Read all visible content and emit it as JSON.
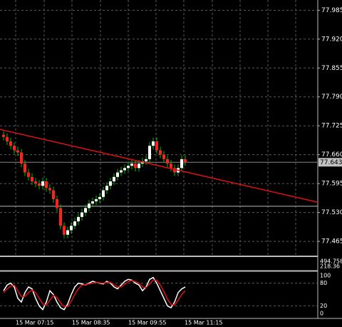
{
  "chart_data": {
    "type": "candlestick",
    "up_color": "#ffffff",
    "down_color": "#ff2020",
    "wick_color": "#00c000",
    "open": [
      77.705,
      77.7,
      77.69,
      77.68,
      77.67,
      77.665,
      77.64,
      77.62,
      77.61,
      77.6,
      77.595,
      77.59,
      77.6,
      77.585,
      77.58,
      77.56,
      77.54,
      77.5,
      77.48,
      77.49,
      77.5,
      77.51,
      77.52,
      77.53,
      77.54,
      77.55,
      77.555,
      77.56,
      77.565,
      77.58,
      77.59,
      77.6,
      77.61,
      77.62,
      77.625,
      77.63,
      77.635,
      77.64,
      77.63,
      77.64,
      77.645,
      77.65,
      77.68,
      77.69,
      77.67,
      77.66,
      77.65,
      77.64,
      77.63,
      77.62,
      77.63,
      77.65
    ],
    "high": [
      77.713,
      77.708,
      77.698,
      77.688,
      77.678,
      77.673,
      77.648,
      77.628,
      77.618,
      77.608,
      77.603,
      77.608,
      77.608,
      77.593,
      77.588,
      77.568,
      77.548,
      77.508,
      77.498,
      77.508,
      77.518,
      77.528,
      77.538,
      77.548,
      77.558,
      77.563,
      77.568,
      77.573,
      77.588,
      77.598,
      77.608,
      77.618,
      77.628,
      77.633,
      77.638,
      77.643,
      77.648,
      77.648,
      77.648,
      77.653,
      77.658,
      77.688,
      77.698,
      77.698,
      77.678,
      77.668,
      77.658,
      77.648,
      77.638,
      77.638,
      77.658,
      77.658
    ],
    "low": [
      77.692,
      77.682,
      77.672,
      77.662,
      77.657,
      77.632,
      77.612,
      77.602,
      77.592,
      77.587,
      77.582,
      77.582,
      77.577,
      77.572,
      77.552,
      77.532,
      77.492,
      77.472,
      77.472,
      77.482,
      77.492,
      77.502,
      77.512,
      77.522,
      77.532,
      77.542,
      77.547,
      77.552,
      77.557,
      77.572,
      77.582,
      77.592,
      77.602,
      77.612,
      77.617,
      77.622,
      77.627,
      77.622,
      77.622,
      77.632,
      77.637,
      77.642,
      77.672,
      77.662,
      77.652,
      77.642,
      77.632,
      77.622,
      77.612,
      77.612,
      77.622,
      77.635
    ],
    "close": [
      77.7,
      77.69,
      77.68,
      77.67,
      77.665,
      77.64,
      77.62,
      77.61,
      77.6,
      77.595,
      77.59,
      77.6,
      77.585,
      77.58,
      77.56,
      77.54,
      77.5,
      77.48,
      77.49,
      77.5,
      77.51,
      77.52,
      77.53,
      77.54,
      77.55,
      77.555,
      77.56,
      77.565,
      77.58,
      77.59,
      77.6,
      77.61,
      77.62,
      77.625,
      77.63,
      77.635,
      77.64,
      77.63,
      77.64,
      77.645,
      77.65,
      77.68,
      77.69,
      77.67,
      77.66,
      77.65,
      77.64,
      77.63,
      77.62,
      77.63,
      77.65,
      77.643
    ],
    "ylim": [
      77.433,
      78.008
    ],
    "yticks": [
      77.985,
      {
        "value": 77.92,
        "label": "77.920"
      },
      77.855,
      {
        "value": 77.79,
        "label": "77.790"
      },
      77.725,
      {
        "value": 77.66,
        "label": "77.660"
      },
      77.595,
      {
        "value": 77.53,
        "label": "77.530"
      },
      77.465
    ],
    "current_price": 77.643,
    "level_line": 77.544,
    "trendline": {
      "color": "#e01010",
      "values": [
        77.717,
        77.553
      ]
    },
    "x_labels": [
      "15 Mar 07:15",
      "15 Mar 08:35",
      "15 Mar 09:55",
      "15 Mar 11:15"
    ],
    "indicator_labels": [
      "494.758",
      "218.36"
    ],
    "oscillator": {
      "ylim": [
        0,
        100
      ],
      "yticks": [
        100,
        80,
        20,
        0
      ],
      "lines": [
        {
          "color": "#ffffff",
          "values": [
            60,
            75,
            80,
            70,
            40,
            30,
            55,
            70,
            65,
            40,
            20,
            10,
            30,
            60,
            50,
            30,
            15,
            10,
            25,
            50,
            70,
            80,
            78,
            75,
            80,
            85,
            82,
            80,
            78,
            85,
            80,
            70,
            65,
            75,
            85,
            90,
            88,
            80,
            75,
            60,
            70,
            90,
            95,
            80,
            60,
            40,
            20,
            15,
            30,
            55,
            65,
            70
          ]
        },
        {
          "color": "#e01010",
          "values": [
            55,
            65,
            72,
            75,
            60,
            45,
            45,
            55,
            62,
            55,
            40,
            25,
            22,
            35,
            48,
            42,
            28,
            18,
            18,
            32,
            50,
            65,
            75,
            76,
            78,
            80,
            82,
            81,
            80,
            82,
            82,
            76,
            70,
            70,
            77,
            84,
            87,
            84,
            80,
            70,
            68,
            78,
            88,
            88,
            75,
            58,
            38,
            24,
            22,
            35,
            50,
            60
          ]
        }
      ]
    }
  }
}
